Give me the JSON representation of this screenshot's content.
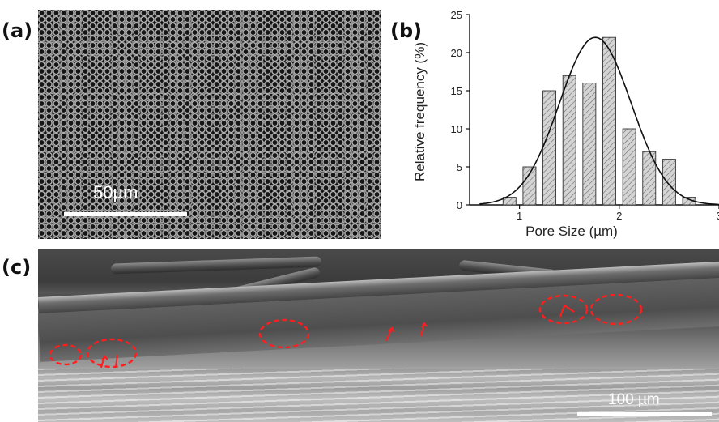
{
  "figure": {
    "panel_a": {
      "label": "(a)",
      "scale_bar_text": "50µm"
    },
    "panel_b": {
      "label": "(b)"
    },
    "panel_c": {
      "label": "(c)",
      "scale_bar_text": "100 µm"
    }
  },
  "chart_data": {
    "type": "bar",
    "xlabel": "Pore Size (µm)",
    "ylabel": "Relative frequency (%)",
    "xlim": [
      0.5,
      3
    ],
    "ylim": [
      0,
      25
    ],
    "x_ticks": [
      "1",
      "2",
      "3"
    ],
    "y_ticks": [
      "0",
      "5",
      "10",
      "15",
      "20",
      "25"
    ],
    "bar_style": "hatched",
    "bar_color": "#c8c8c8",
    "x": [
      0.9,
      1.1,
      1.3,
      1.5,
      1.7,
      1.9,
      2.1,
      2.3,
      2.5,
      2.7
    ],
    "values": [
      1,
      5,
      15,
      17,
      16,
      22,
      10,
      7,
      6,
      1
    ],
    "fit_curve": {
      "type": "gaussian",
      "center": 1.76,
      "peak": 22,
      "sigma": 0.36
    }
  }
}
